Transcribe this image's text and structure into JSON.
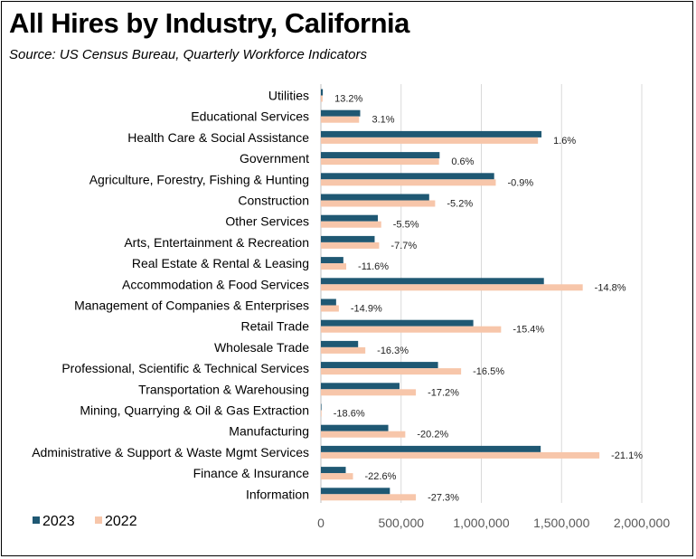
{
  "header": {
    "title": "All Hires by Industry, California",
    "subtitle": "Source:  US Census Bureau, Quarterly Workforce Indicators"
  },
  "chart_data": {
    "type": "bar",
    "orientation": "horizontal",
    "title": "All Hires by Industry, California",
    "subtitle": "Source:  US Census Bureau, Quarterly Workforce Indicators",
    "categories": [
      "Utilities",
      "Educational Services",
      "Health Care & Social Assistance",
      "Government",
      "Agriculture, Forestry, Fishing & Hunting",
      "Construction",
      "Other Services",
      "Arts, Entertainment & Recreation",
      "Real Estate & Rental & Leasing",
      "Accommodation & Food Services",
      "Management of Companies & Enterprises",
      "Retail Trade",
      "Wholesale Trade",
      "Professional, Scientific & Technical Services",
      "Transportation & Warehousing",
      "Mining, Quarrying & Oil & Gas Extraction",
      "Manufacturing",
      "Administrative & Support & Waste Mgmt Services",
      "Finance & Insurance",
      "Information"
    ],
    "series": [
      {
        "name": "2023",
        "color": "#1f5873",
        "values": [
          12000,
          245000,
          1375000,
          740000,
          1080000,
          675000,
          355000,
          335000,
          140000,
          1390000,
          95000,
          950000,
          232000,
          730000,
          490000,
          3500,
          420000,
          1370000,
          155000,
          430000
        ]
      },
      {
        "name": "2022",
        "color": "#f7c6aa",
        "values": [
          10600,
          238000,
          1353000,
          736000,
          1090000,
          712000,
          376000,
          363000,
          158000,
          1632000,
          112000,
          1123000,
          277000,
          874000,
          592000,
          4300,
          526000,
          1736000,
          200000,
          592000
        ]
      }
    ],
    "data_labels": [
      "13.2%",
      "3.1%",
      "1.6%",
      "0.6%",
      "-0.9%",
      "-5.2%",
      "-5.5%",
      "-7.7%",
      "-11.6%",
      "-14.8%",
      "-14.9%",
      "-15.4%",
      "-16.3%",
      "-16.5%",
      "-17.2%",
      "-18.6%",
      "-20.2%",
      "-21.1%",
      "-22.6%",
      "-27.3%"
    ],
    "xlim": [
      0,
      2000000
    ],
    "x_ticks": [
      0,
      500000,
      1000000,
      1500000,
      2000000
    ],
    "x_tick_labels": [
      "0",
      "500,000",
      "1,000,000",
      "1,500,000",
      "2,000,000"
    ],
    "xlabel": "",
    "ylabel": "",
    "grid": "vertical",
    "legend_position": "bottom-left"
  }
}
